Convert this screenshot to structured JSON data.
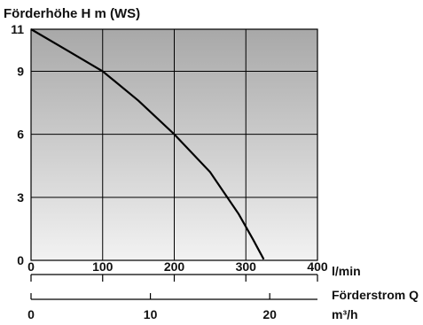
{
  "chart_data": {
    "type": "line",
    "title": "Förderhöhe H m (WS)",
    "ylabel": "Förderhöhe H m (WS)",
    "xlabel": "Förderstrom Q",
    "x_unit_primary": "l/min",
    "x_unit_secondary": "m³/h",
    "xlim": [
      0,
      400
    ],
    "ylim": [
      0,
      11
    ],
    "y_ticks": [
      0,
      3,
      6,
      9,
      11
    ],
    "x_ticks_primary": [
      0,
      100,
      200,
      300,
      400
    ],
    "x_ticks_secondary": [
      0,
      10,
      20
    ],
    "secondary_axis_max": 24,
    "grid": true,
    "plot_background": "gradient grey (light at bottom, darker at top)",
    "colors": {
      "curve": "#000000",
      "grid": "#000000",
      "bg_top": "#a8a8a8",
      "bg_bottom": "#f2f2f2"
    },
    "series": [
      {
        "x": [
          0,
          50,
          100,
          150,
          200,
          250,
          290,
          310,
          325
        ],
        "y": [
          11.0,
          10.0,
          9.0,
          7.6,
          6.0,
          4.2,
          2.2,
          1.0,
          0.05
        ]
      }
    ]
  }
}
